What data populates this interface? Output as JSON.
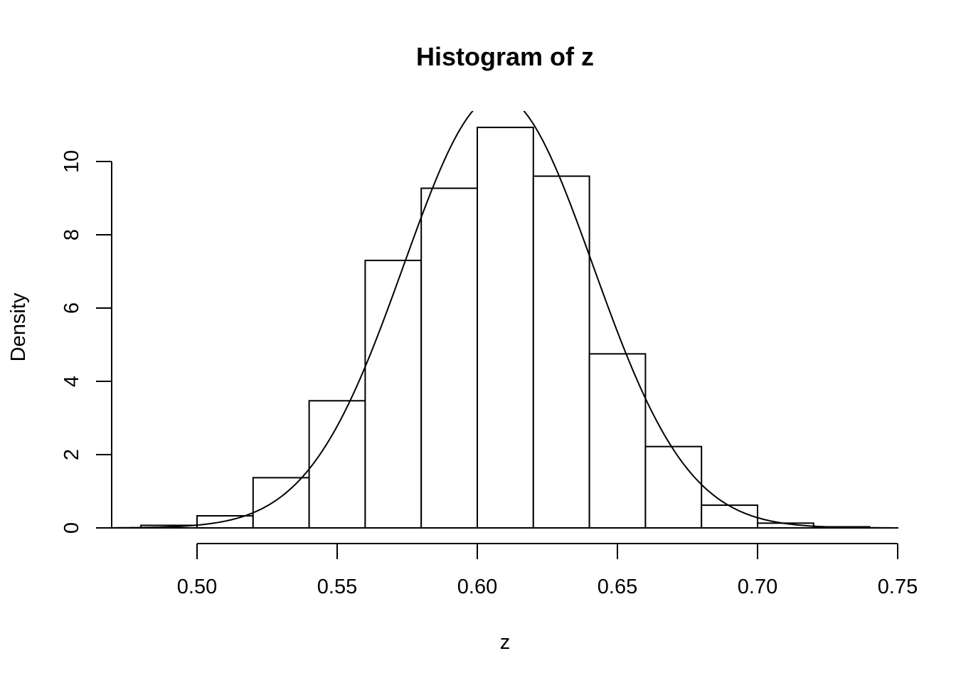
{
  "chart_data": {
    "type": "bar",
    "title": "Histogram of z",
    "xlabel": "z",
    "ylabel": "Density",
    "bins": [
      {
        "start": 0.48,
        "end": 0.5,
        "density": 0.07
      },
      {
        "start": 0.5,
        "end": 0.52,
        "density": 0.33
      },
      {
        "start": 0.52,
        "end": 0.54,
        "density": 1.37
      },
      {
        "start": 0.54,
        "end": 0.56,
        "density": 3.47
      },
      {
        "start": 0.56,
        "end": 0.58,
        "density": 7.3
      },
      {
        "start": 0.58,
        "end": 0.6,
        "density": 9.27
      },
      {
        "start": 0.6,
        "end": 0.62,
        "density": 10.93
      },
      {
        "start": 0.62,
        "end": 0.64,
        "density": 9.6
      },
      {
        "start": 0.64,
        "end": 0.66,
        "density": 4.75
      },
      {
        "start": 0.66,
        "end": 0.68,
        "density": 2.22
      },
      {
        "start": 0.68,
        "end": 0.7,
        "density": 0.62
      },
      {
        "start": 0.7,
        "end": 0.72,
        "density": 0.13
      },
      {
        "start": 0.72,
        "end": 0.74,
        "density": 0.03
      }
    ],
    "density_curve": {
      "mean": 0.6075,
      "sd": 0.0338
    },
    "x_ticks": [
      0.5,
      0.55,
      0.6,
      0.65,
      0.7,
      0.75
    ],
    "x_tick_labels": [
      "0.50",
      "0.55",
      "0.60",
      "0.65",
      "0.70",
      "0.75"
    ],
    "y_ticks": [
      0,
      2,
      4,
      6,
      8,
      10
    ],
    "y_tick_labels": [
      "0",
      "2",
      "4",
      "6",
      "8",
      "10"
    ],
    "xlim": [
      0.47,
      0.75
    ],
    "ylim": [
      0,
      11.4
    ],
    "grid": false
  }
}
